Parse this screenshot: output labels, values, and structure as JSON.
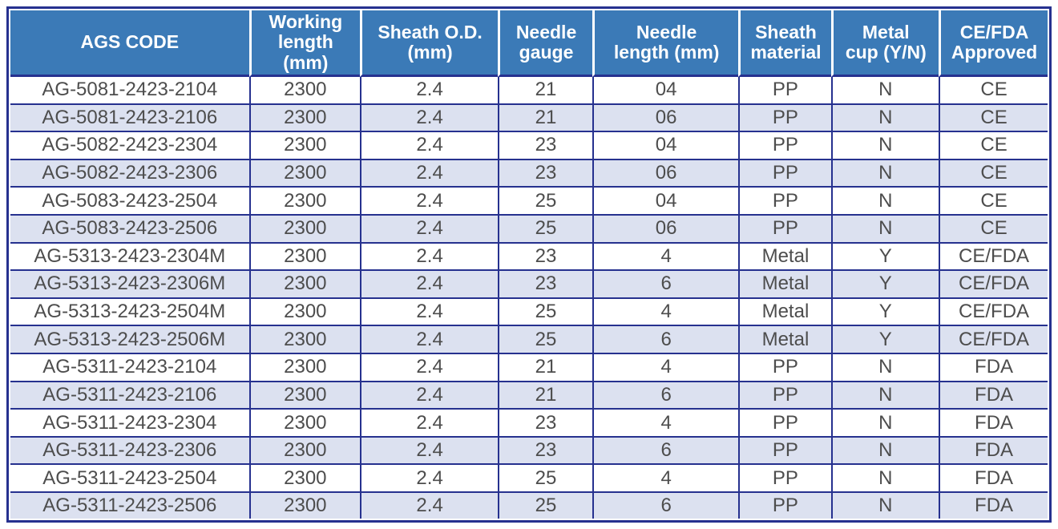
{
  "colors": {
    "header_bg": "#3b7ab7",
    "header_text": "#ffffff",
    "border_navy": "#26318f",
    "row_alt_bg": "#dce1f0",
    "row_bg": "#ffffff",
    "cell_text": "#4d4d4d"
  },
  "chart_data": {
    "type": "table",
    "columns": [
      {
        "label": "AGS CODE"
      },
      {
        "label": "Working\nlength\n(mm)"
      },
      {
        "label": "Sheath O.D.\n(mm)"
      },
      {
        "label": "Needle\ngauge"
      },
      {
        "label": "Needle\nlength (mm)"
      },
      {
        "label": "Sheath\nmaterial"
      },
      {
        "label": "Metal\ncup (Y/N)"
      },
      {
        "label": "CE/FDA\nApproved"
      }
    ],
    "rows": [
      [
        "AG-5081-2423-2104",
        "2300",
        "2.4",
        "21",
        "04",
        "PP",
        "N",
        "CE"
      ],
      [
        "AG-5081-2423-2106",
        "2300",
        "2.4",
        "21",
        "06",
        "PP",
        "N",
        "CE"
      ],
      [
        "AG-5082-2423-2304",
        "2300",
        "2.4",
        "23",
        "04",
        "PP",
        "N",
        "CE"
      ],
      [
        "AG-5082-2423-2306",
        "2300",
        "2.4",
        "23",
        "06",
        "PP",
        "N",
        "CE"
      ],
      [
        "AG-5083-2423-2504",
        "2300",
        "2.4",
        "25",
        "04",
        "PP",
        "N",
        "CE"
      ],
      [
        "AG-5083-2423-2506",
        "2300",
        "2.4",
        "25",
        "06",
        "PP",
        "N",
        "CE"
      ],
      [
        "AG-5313-2423-2304M",
        "2300",
        "2.4",
        "23",
        "4",
        "Metal",
        "Y",
        "CE/FDA"
      ],
      [
        "AG-5313-2423-2306M",
        "2300",
        "2.4",
        "23",
        "6",
        "Metal",
        "Y",
        "CE/FDA"
      ],
      [
        "AG-5313-2423-2504M",
        "2300",
        "2.4",
        "25",
        "4",
        "Metal",
        "Y",
        "CE/FDA"
      ],
      [
        "AG-5313-2423-2506M",
        "2300",
        "2.4",
        "25",
        "6",
        "Metal",
        "Y",
        "CE/FDA"
      ],
      [
        "AG-5311-2423-2104",
        "2300",
        "2.4",
        "21",
        "4",
        "PP",
        "N",
        "FDA"
      ],
      [
        "AG-5311-2423-2106",
        "2300",
        "2.4",
        "21",
        "6",
        "PP",
        "N",
        "FDA"
      ],
      [
        "AG-5311-2423-2304",
        "2300",
        "2.4",
        "23",
        "4",
        "PP",
        "N",
        "FDA"
      ],
      [
        "AG-5311-2423-2306",
        "2300",
        "2.4",
        "23",
        "6",
        "PP",
        "N",
        "FDA"
      ],
      [
        "AG-5311-2423-2504",
        "2300",
        "2.4",
        "25",
        "4",
        "PP",
        "N",
        "FDA"
      ],
      [
        "AG-5311-2423-2506",
        "2300",
        "2.4",
        "25",
        "6",
        "PP",
        "N",
        "FDA"
      ]
    ],
    "column_widths_pct": [
      23.0,
      10.7,
      13.3,
      9.1,
      14.1,
      8.9,
      10.4,
      10.5
    ]
  }
}
